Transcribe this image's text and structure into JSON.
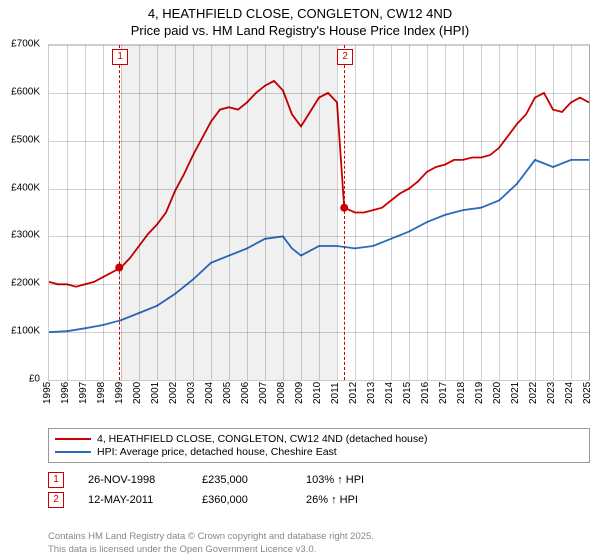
{
  "header": {
    "address": "4, HEATHFIELD CLOSE, CONGLETON, CW12 4ND",
    "subtitle": "Price paid vs. HM Land Registry's House Price Index (HPI)"
  },
  "chart": {
    "type": "line",
    "background_color": "#ffffff",
    "grid_color": "rgba(0,0,0,0.18)",
    "ylim": [
      0,
      700
    ],
    "ytick_step": 100,
    "y_prefix": "£",
    "y_suffix": "K",
    "xlim": [
      1995,
      2025
    ],
    "xtick_step": 1,
    "shaded_x": [
      1999,
      2011
    ],
    "line_width": 1.8,
    "series_red": {
      "color": "#cc0000",
      "data": [
        [
          1995,
          205
        ],
        [
          1995.5,
          200
        ],
        [
          1996,
          200
        ],
        [
          1996.5,
          195
        ],
        [
          1997,
          200
        ],
        [
          1997.5,
          205
        ],
        [
          1998,
          215
        ],
        [
          1998.5,
          225
        ],
        [
          1999,
          235
        ],
        [
          1999.5,
          255
        ],
        [
          2000,
          280
        ],
        [
          2000.5,
          305
        ],
        [
          2001,
          325
        ],
        [
          2001.5,
          350
        ],
        [
          2002,
          395
        ],
        [
          2002.5,
          430
        ],
        [
          2003,
          470
        ],
        [
          2003.5,
          505
        ],
        [
          2004,
          540
        ],
        [
          2004.5,
          565
        ],
        [
          2005,
          570
        ],
        [
          2005.5,
          565
        ],
        [
          2006,
          580
        ],
        [
          2006.5,
          600
        ],
        [
          2007,
          615
        ],
        [
          2007.5,
          625
        ],
        [
          2008,
          605
        ],
        [
          2008.5,
          555
        ],
        [
          2009,
          530
        ],
        [
          2009.5,
          560
        ],
        [
          2010,
          590
        ],
        [
          2010.5,
          600
        ],
        [
          2011,
          580
        ],
        [
          2011.4,
          360
        ],
        [
          2012,
          350
        ],
        [
          2012.5,
          350
        ],
        [
          2013,
          355
        ],
        [
          2013.5,
          360
        ],
        [
          2014,
          375
        ],
        [
          2014.5,
          390
        ],
        [
          2015,
          400
        ],
        [
          2015.5,
          415
        ],
        [
          2016,
          435
        ],
        [
          2016.5,
          445
        ],
        [
          2017,
          450
        ],
        [
          2017.5,
          460
        ],
        [
          2018,
          460
        ],
        [
          2018.5,
          465
        ],
        [
          2019,
          465
        ],
        [
          2019.5,
          470
        ],
        [
          2020,
          485
        ],
        [
          2020.5,
          510
        ],
        [
          2021,
          535
        ],
        [
          2021.5,
          555
        ],
        [
          2022,
          590
        ],
        [
          2022.5,
          600
        ],
        [
          2023,
          565
        ],
        [
          2023.5,
          560
        ],
        [
          2024,
          580
        ],
        [
          2024.5,
          590
        ],
        [
          2025,
          580
        ]
      ]
    },
    "series_blue": {
      "color": "#2a6bbf",
      "data": [
        [
          1995,
          100
        ],
        [
          1996,
          102
        ],
        [
          1997,
          108
        ],
        [
          1998,
          115
        ],
        [
          1999,
          125
        ],
        [
          2000,
          140
        ],
        [
          2001,
          155
        ],
        [
          2002,
          180
        ],
        [
          2003,
          210
        ],
        [
          2004,
          245
        ],
        [
          2005,
          260
        ],
        [
          2006,
          275
        ],
        [
          2007,
          295
        ],
        [
          2008,
          300
        ],
        [
          2008.5,
          275
        ],
        [
          2009,
          260
        ],
        [
          2010,
          280
        ],
        [
          2011,
          280
        ],
        [
          2012,
          275
        ],
        [
          2013,
          280
        ],
        [
          2014,
          295
        ],
        [
          2015,
          310
        ],
        [
          2016,
          330
        ],
        [
          2017,
          345
        ],
        [
          2018,
          355
        ],
        [
          2019,
          360
        ],
        [
          2020,
          375
        ],
        [
          2021,
          410
        ],
        [
          2022,
          460
        ],
        [
          2023,
          445
        ],
        [
          2024,
          460
        ],
        [
          2025,
          460
        ]
      ]
    },
    "markers": [
      {
        "x": 1998.9,
        "y": 235,
        "color": "#cc0000"
      },
      {
        "x": 2011.4,
        "y": 360,
        "color": "#cc0000"
      }
    ],
    "event_lines": [
      {
        "x": 1998.9,
        "badge": "1"
      },
      {
        "x": 2011.4,
        "badge": "2"
      }
    ]
  },
  "legend": {
    "items": [
      {
        "color": "#cc0000",
        "label": "4, HEATHFIELD CLOSE, CONGLETON, CW12 4ND (detached house)"
      },
      {
        "color": "#2a6bbf",
        "label": "HPI: Average price, detached house, Cheshire East"
      }
    ]
  },
  "events": {
    "rows": [
      {
        "badge": "1",
        "date": "26-NOV-1998",
        "price": "£235,000",
        "pct": "103% ↑ HPI"
      },
      {
        "badge": "2",
        "date": "12-MAY-2011",
        "price": "£360,000",
        "pct": "26% ↑ HPI"
      }
    ]
  },
  "footer": {
    "line1": "Contains HM Land Registry data © Crown copyright and database right 2025.",
    "line2": "This data is licensed under the Open Government Licence v3.0."
  }
}
